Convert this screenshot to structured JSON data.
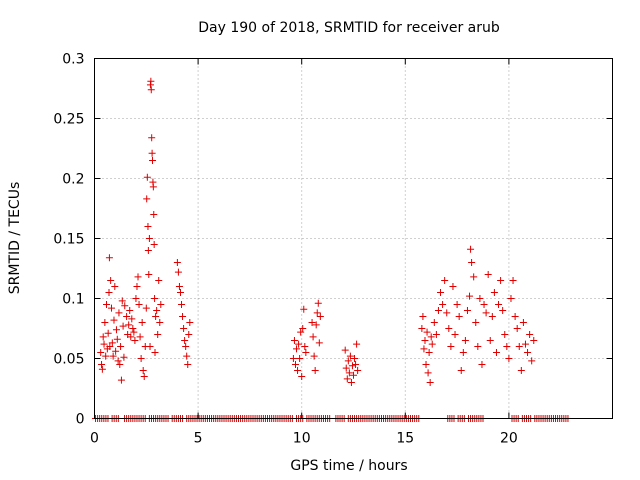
{
  "chart_data": {
    "type": "scatter",
    "title": "Day 190 of 2018, SRMTID for receiver arub",
    "xlabel": "GPS time / hours",
    "ylabel": "SRMTID / TECUs",
    "xlim": [
      0,
      25
    ],
    "ylim": [
      0,
      0.3
    ],
    "xticks": [
      0,
      5,
      10,
      15,
      20
    ],
    "xtick_labels": [
      "0",
      "5",
      "10",
      "15",
      "20"
    ],
    "yticks": [
      0,
      0.05,
      0.1,
      0.15,
      0.2,
      0.25,
      0.3
    ],
    "ytick_labels": [
      "0",
      "0.05",
      "0.1",
      "0.15",
      "0.2",
      "0.25",
      "0.3"
    ],
    "grid": true,
    "marker": "+",
    "marker_color": "#e00000",
    "series": [
      {
        "name": "SRMTID",
        "points": [
          [
            0.3,
            0.055
          ],
          [
            0.34,
            0.045
          ],
          [
            0.38,
            0.041
          ],
          [
            0.42,
            0.068
          ],
          [
            0.46,
            0.062
          ],
          [
            0.5,
            0.08
          ],
          [
            0.54,
            0.052
          ],
          [
            0.58,
            0.095
          ],
          [
            0.62,
            0.058
          ],
          [
            0.66,
            0.071
          ],
          [
            0.7,
            0.105
          ],
          [
            0.72,
            0.134
          ],
          [
            0.74,
            0.06
          ],
          [
            0.78,
            0.115
          ],
          [
            0.82,
            0.092
          ],
          [
            0.86,
            0.063
          ],
          [
            0.9,
            0.052
          ],
          [
            0.94,
            0.082
          ],
          [
            0.98,
            0.11
          ],
          [
            1.02,
            0.056
          ],
          [
            1.06,
            0.074
          ],
          [
            1.1,
            0.066
          ],
          [
            1.14,
            0.048
          ],
          [
            1.18,
            0.088
          ],
          [
            1.22,
            0.045
          ],
          [
            1.26,
            0.06
          ],
          [
            1.3,
            0.032
          ],
          [
            1.34,
            0.098
          ],
          [
            1.38,
            0.077
          ],
          [
            1.42,
            0.051
          ],
          [
            1.46,
            0.094
          ],
          [
            1.55,
            0.085
          ],
          [
            1.6,
            0.07
          ],
          [
            1.65,
            0.078
          ],
          [
            1.7,
            0.09
          ],
          [
            1.75,
            0.068
          ],
          [
            1.8,
            0.083
          ],
          [
            1.85,
            0.075
          ],
          [
            1.9,
            0.072
          ],
          [
            1.95,
            0.065
          ],
          [
            2.0,
            0.1
          ],
          [
            2.05,
            0.11
          ],
          [
            2.1,
            0.118
          ],
          [
            2.15,
            0.095
          ],
          [
            2.2,
            0.068
          ],
          [
            2.25,
            0.05
          ],
          [
            2.3,
            0.08
          ],
          [
            2.35,
            0.04
          ],
          [
            2.4,
            0.035
          ],
          [
            2.45,
            0.06
          ],
          [
            2.5,
            0.092
          ],
          [
            2.52,
            0.183
          ],
          [
            2.55,
            0.201
          ],
          [
            2.58,
            0.16
          ],
          [
            2.6,
            0.14
          ],
          [
            2.62,
            0.12
          ],
          [
            2.65,
            0.15
          ],
          [
            2.68,
            0.06
          ],
          [
            2.7,
            0.278
          ],
          [
            2.72,
            0.281
          ],
          [
            2.74,
            0.274
          ],
          [
            2.76,
            0.234
          ],
          [
            2.78,
            0.221
          ],
          [
            2.8,
            0.215
          ],
          [
            2.82,
            0.197
          ],
          [
            2.84,
            0.193
          ],
          [
            2.86,
            0.17
          ],
          [
            2.88,
            0.145
          ],
          [
            2.9,
            0.1
          ],
          [
            2.92,
            0.055
          ],
          [
            2.95,
            0.085
          ],
          [
            3.0,
            0.09
          ],
          [
            3.05,
            0.07
          ],
          [
            3.1,
            0.115
          ],
          [
            3.15,
            0.08
          ],
          [
            3.2,
            0.095
          ],
          [
            4.0,
            0.13
          ],
          [
            4.05,
            0.122
          ],
          [
            4.1,
            0.11
          ],
          [
            4.15,
            0.105
          ],
          [
            4.2,
            0.095
          ],
          [
            4.25,
            0.085
          ],
          [
            4.3,
            0.075
          ],
          [
            4.35,
            0.065
          ],
          [
            4.4,
            0.06
          ],
          [
            4.45,
            0.052
          ],
          [
            4.5,
            0.045
          ],
          [
            4.55,
            0.07
          ],
          [
            4.6,
            0.08
          ],
          [
            9.6,
            0.05
          ],
          [
            9.65,
            0.065
          ],
          [
            9.7,
            0.045
          ],
          [
            9.75,
            0.058
          ],
          [
            9.8,
            0.04
          ],
          [
            9.85,
            0.062
          ],
          [
            9.9,
            0.05
          ],
          [
            9.95,
            0.072
          ],
          [
            10.0,
            0.035
          ],
          [
            10.05,
            0.075
          ],
          [
            10.1,
            0.091
          ],
          [
            10.15,
            0.06
          ],
          [
            10.2,
            0.055
          ],
          [
            10.5,
            0.08
          ],
          [
            10.55,
            0.068
          ],
          [
            10.6,
            0.052
          ],
          [
            10.65,
            0.04
          ],
          [
            10.7,
            0.078
          ],
          [
            10.75,
            0.088
          ],
          [
            10.8,
            0.096
          ],
          [
            10.85,
            0.063
          ],
          [
            10.9,
            0.085
          ],
          [
            12.1,
            0.057
          ],
          [
            12.15,
            0.042
          ],
          [
            12.2,
            0.033
          ],
          [
            12.25,
            0.048
          ],
          [
            12.3,
            0.038
          ],
          [
            12.35,
            0.052
          ],
          [
            12.4,
            0.03
          ],
          [
            12.45,
            0.044
          ],
          [
            12.5,
            0.036
          ],
          [
            12.55,
            0.05
          ],
          [
            12.6,
            0.045
          ],
          [
            12.65,
            0.062
          ],
          [
            12.7,
            0.04
          ],
          [
            15.8,
            0.075
          ],
          [
            15.85,
            0.085
          ],
          [
            15.9,
            0.058
          ],
          [
            15.95,
            0.065
          ],
          [
            16.0,
            0.045
          ],
          [
            16.05,
            0.072
          ],
          [
            16.1,
            0.038
          ],
          [
            16.15,
            0.055
          ],
          [
            16.2,
            0.03
          ],
          [
            16.25,
            0.068
          ],
          [
            16.3,
            0.062
          ],
          [
            16.4,
            0.08
          ],
          [
            16.5,
            0.07
          ],
          [
            16.6,
            0.09
          ],
          [
            16.7,
            0.105
          ],
          [
            16.8,
            0.095
          ],
          [
            16.9,
            0.115
          ],
          [
            17.0,
            0.088
          ],
          [
            17.1,
            0.075
          ],
          [
            17.2,
            0.06
          ],
          [
            17.3,
            0.11
          ],
          [
            17.4,
            0.07
          ],
          [
            17.5,
            0.095
          ],
          [
            17.6,
            0.085
          ],
          [
            17.7,
            0.04
          ],
          [
            17.8,
            0.055
          ],
          [
            17.9,
            0.065
          ],
          [
            18.0,
            0.09
          ],
          [
            18.1,
            0.102
          ],
          [
            18.15,
            0.141
          ],
          [
            18.2,
            0.13
          ],
          [
            18.3,
            0.118
          ],
          [
            18.4,
            0.08
          ],
          [
            18.5,
            0.06
          ],
          [
            18.6,
            0.1
          ],
          [
            18.7,
            0.045
          ],
          [
            18.8,
            0.095
          ],
          [
            18.9,
            0.088
          ],
          [
            19.0,
            0.12
          ],
          [
            19.1,
            0.065
          ],
          [
            19.2,
            0.085
          ],
          [
            19.3,
            0.105
          ],
          [
            19.4,
            0.055
          ],
          [
            19.5,
            0.095
          ],
          [
            19.6,
            0.115
          ],
          [
            19.7,
            0.09
          ],
          [
            19.8,
            0.07
          ],
          [
            19.9,
            0.06
          ],
          [
            20.0,
            0.05
          ],
          [
            20.1,
            0.1
          ],
          [
            20.2,
            0.115
          ],
          [
            20.3,
            0.085
          ],
          [
            20.4,
            0.075
          ],
          [
            20.5,
            0.06
          ],
          [
            20.6,
            0.04
          ],
          [
            20.7,
            0.08
          ],
          [
            20.8,
            0.062
          ],
          [
            20.9,
            0.055
          ],
          [
            21.0,
            0.07
          ],
          [
            21.1,
            0.048
          ],
          [
            21.2,
            0.065
          ]
        ]
      }
    ],
    "zero_marks": {
      "y": 0,
      "x_segments": [
        [
          0.05,
          0.65
        ],
        [
          0.85,
          1.15
        ],
        [
          1.45,
          2.45
        ],
        [
          2.65,
          3.55
        ],
        [
          3.75,
          4.25
        ],
        [
          4.45,
          9.55
        ],
        [
          9.75,
          10.05
        ],
        [
          10.25,
          11.35
        ],
        [
          11.65,
          12.05
        ],
        [
          12.25,
          15.65
        ],
        [
          17.05,
          17.35
        ],
        [
          17.55,
          17.85
        ],
        [
          18.05,
          18.75
        ],
        [
          20.15,
          20.45
        ],
        [
          20.65,
          21.05
        ],
        [
          21.25,
          22.85
        ]
      ],
      "step": 0.1
    }
  }
}
